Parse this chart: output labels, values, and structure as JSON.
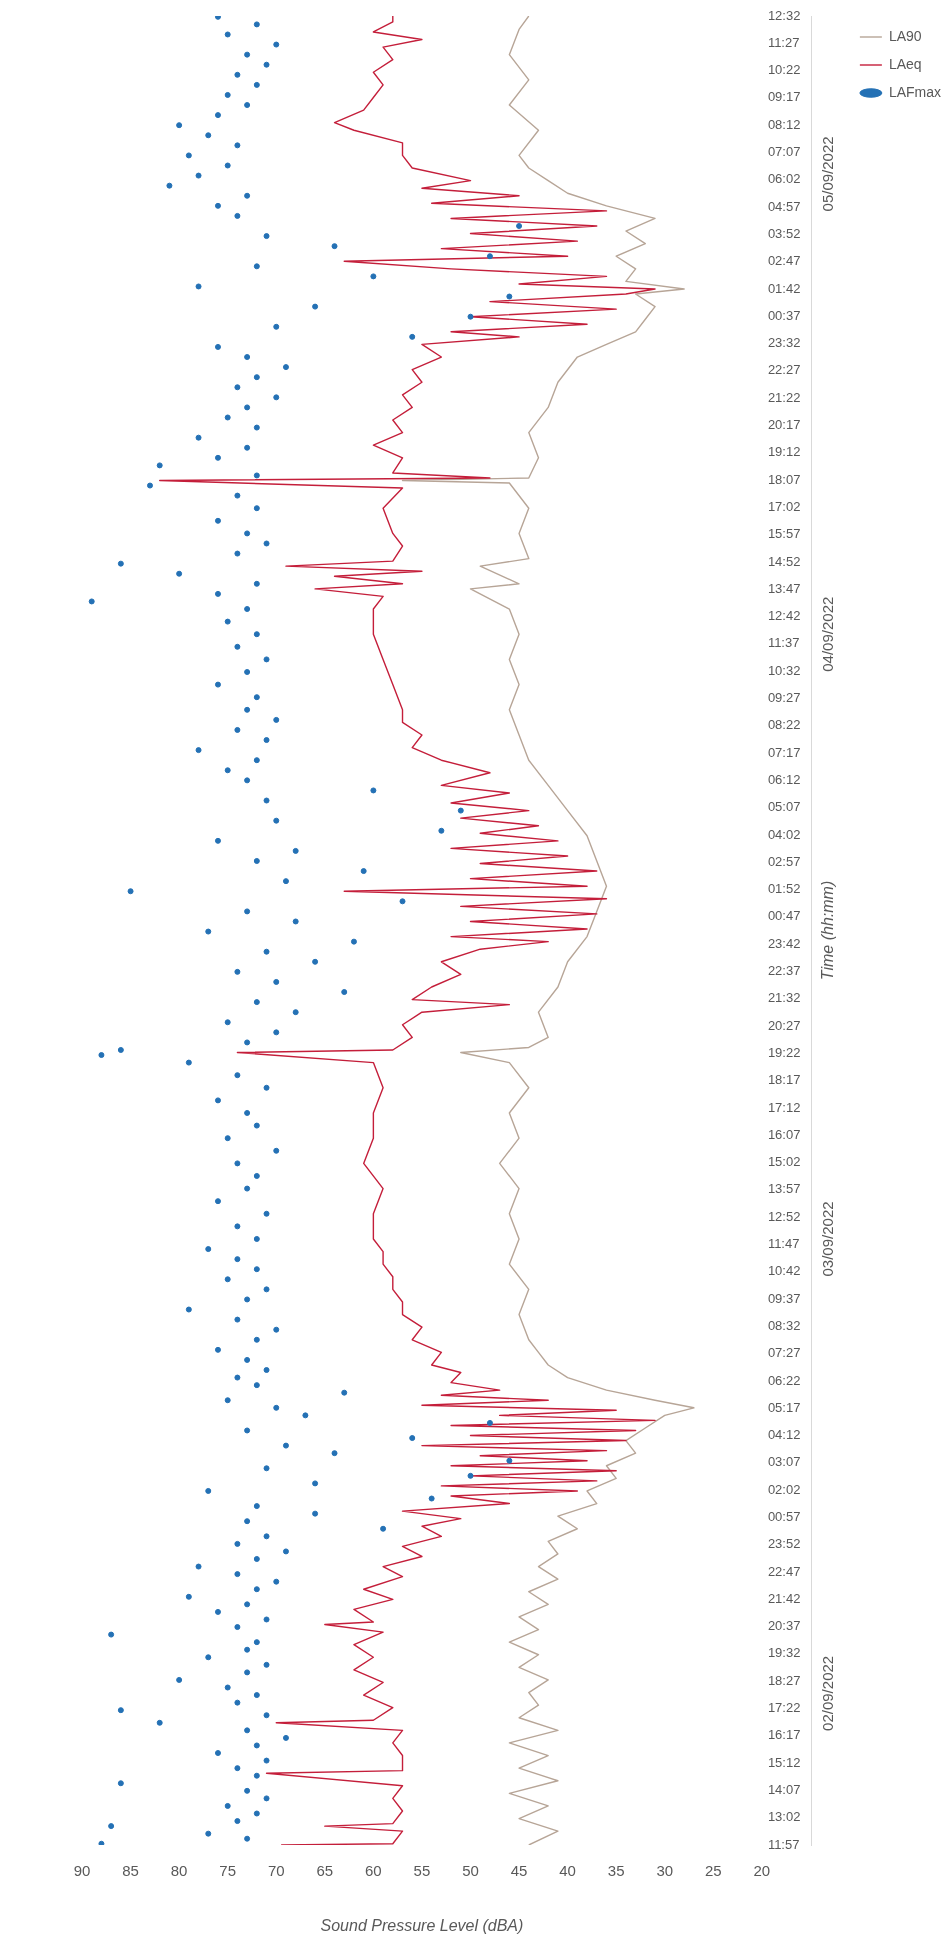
{
  "chart_data": {
    "type": "line",
    "orientation": "horizontal",
    "xlabel": "Sound Pressure Level (dBA)",
    "y2label": "Time (hh:mm)",
    "xlim": [
      90,
      20
    ],
    "xticks": [
      90,
      85,
      80,
      75,
      70,
      65,
      60,
      55,
      50,
      45,
      40,
      35,
      30,
      25,
      20
    ],
    "ylim": [
      "2022-09-02T11:57",
      "2022-09-05T12:32"
    ],
    "yticks": [
      {
        "value": "2022-09-02T11:57",
        "label": "11:57"
      },
      {
        "value": "2022-09-02T13:02",
        "label": "13:02"
      },
      {
        "value": "2022-09-02T14:07",
        "label": "14:07"
      },
      {
        "value": "2022-09-02T15:12",
        "label": "15:12"
      },
      {
        "value": "2022-09-02T16:17",
        "label": "16:17"
      },
      {
        "value": "2022-09-02T17:22",
        "label": "17:22"
      },
      {
        "value": "2022-09-02T18:27",
        "label": "18:27"
      },
      {
        "value": "2022-09-02T19:32",
        "label": "19:32"
      },
      {
        "value": "2022-09-02T20:37",
        "label": "20:37"
      },
      {
        "value": "2022-09-02T21:42",
        "label": "21:42"
      },
      {
        "value": "2022-09-02T22:47",
        "label": "22:47"
      },
      {
        "value": "2022-09-02T23:52",
        "label": "23:52"
      },
      {
        "value": "2022-09-03T00:57",
        "label": "00:57"
      },
      {
        "value": "2022-09-03T02:02",
        "label": "02:02"
      },
      {
        "value": "2022-09-03T03:07",
        "label": "03:07"
      },
      {
        "value": "2022-09-03T04:12",
        "label": "04:12"
      },
      {
        "value": "2022-09-03T05:17",
        "label": "05:17"
      },
      {
        "value": "2022-09-03T06:22",
        "label": "06:22"
      },
      {
        "value": "2022-09-03T07:27",
        "label": "07:27"
      },
      {
        "value": "2022-09-03T08:32",
        "label": "08:32"
      },
      {
        "value": "2022-09-03T09:37",
        "label": "09:37"
      },
      {
        "value": "2022-09-03T10:42",
        "label": "10:42"
      },
      {
        "value": "2022-09-03T11:47",
        "label": "11:47"
      },
      {
        "value": "2022-09-03T12:52",
        "label": "12:52"
      },
      {
        "value": "2022-09-03T13:57",
        "label": "13:57"
      },
      {
        "value": "2022-09-03T15:02",
        "label": "15:02"
      },
      {
        "value": "2022-09-03T16:07",
        "label": "16:07"
      },
      {
        "value": "2022-09-03T17:12",
        "label": "17:12"
      },
      {
        "value": "2022-09-03T18:17",
        "label": "18:17"
      },
      {
        "value": "2022-09-03T19:22",
        "label": "19:22"
      },
      {
        "value": "2022-09-03T20:27",
        "label": "20:27"
      },
      {
        "value": "2022-09-03T21:32",
        "label": "21:32"
      },
      {
        "value": "2022-09-03T22:37",
        "label": "22:37"
      },
      {
        "value": "2022-09-03T23:42",
        "label": "23:42"
      },
      {
        "value": "2022-09-04T00:47",
        "label": "00:47"
      },
      {
        "value": "2022-09-04T01:52",
        "label": "01:52"
      },
      {
        "value": "2022-09-04T02:57",
        "label": "02:57"
      },
      {
        "value": "2022-09-04T04:02",
        "label": "04:02"
      },
      {
        "value": "2022-09-04T05:07",
        "label": "05:07"
      },
      {
        "value": "2022-09-04T06:12",
        "label": "06:12"
      },
      {
        "value": "2022-09-04T07:17",
        "label": "07:17"
      },
      {
        "value": "2022-09-04T08:22",
        "label": "08:22"
      },
      {
        "value": "2022-09-04T09:27",
        "label": "09:27"
      },
      {
        "value": "2022-09-04T10:32",
        "label": "10:32"
      },
      {
        "value": "2022-09-04T11:37",
        "label": "11:37"
      },
      {
        "value": "2022-09-04T12:42",
        "label": "12:42"
      },
      {
        "value": "2022-09-04T13:47",
        "label": "13:47"
      },
      {
        "value": "2022-09-04T14:52",
        "label": "14:52"
      },
      {
        "value": "2022-09-04T15:57",
        "label": "15:57"
      },
      {
        "value": "2022-09-04T17:02",
        "label": "17:02"
      },
      {
        "value": "2022-09-04T18:07",
        "label": "18:07"
      },
      {
        "value": "2022-09-04T19:12",
        "label": "19:12"
      },
      {
        "value": "2022-09-04T20:17",
        "label": "20:17"
      },
      {
        "value": "2022-09-04T21:22",
        "label": "21:22"
      },
      {
        "value": "2022-09-04T22:27",
        "label": "22:27"
      },
      {
        "value": "2022-09-04T23:32",
        "label": "23:32"
      },
      {
        "value": "2022-09-05T00:37",
        "label": "00:37"
      },
      {
        "value": "2022-09-05T01:42",
        "label": "01:42"
      },
      {
        "value": "2022-09-05T02:47",
        "label": "02:47"
      },
      {
        "value": "2022-09-05T03:52",
        "label": "03:52"
      },
      {
        "value": "2022-09-05T04:57",
        "label": "04:57"
      },
      {
        "value": "2022-09-05T06:02",
        "label": "06:02"
      },
      {
        "value": "2022-09-05T07:07",
        "label": "07:07"
      },
      {
        "value": "2022-09-05T08:12",
        "label": "08:12"
      },
      {
        "value": "2022-09-05T09:17",
        "label": "09:17"
      },
      {
        "value": "2022-09-05T10:22",
        "label": "10:22"
      },
      {
        "value": "2022-09-05T11:27",
        "label": "11:27"
      },
      {
        "value": "2022-09-05T12:32",
        "label": "12:32"
      }
    ],
    "y2lim": [
      "2022-09-02T11:57",
      "2022-09-05T12:32"
    ],
    "y2ticks": [
      {
        "value": "2022-09-02T17:58",
        "label": "02/09/2022"
      },
      {
        "value": "2022-09-03T12:00",
        "label": "03/09/2022"
      },
      {
        "value": "2022-09-04T12:00",
        "label": "04/09/2022"
      },
      {
        "value": "2022-09-05T06:16",
        "label": "05/09/2022"
      }
    ],
    "grid": false,
    "legend": "right",
    "series": [
      {
        "name": "LAFmax",
        "type": "scatter",
        "marker": "circle",
        "color": "#2471b5",
        "x": [
          "2022-09-02T12:00",
          "2022-09-02T12:12",
          "2022-09-02T12:24",
          "2022-09-02T12:42",
          "2022-09-02T12:54",
          "2022-09-02T13:12",
          "2022-09-02T13:30",
          "2022-09-02T13:48",
          "2022-09-02T14:06",
          "2022-09-02T14:24",
          "2022-09-02T14:42",
          "2022-09-02T15:00",
          "2022-09-02T15:18",
          "2022-09-02T15:36",
          "2022-09-02T15:54",
          "2022-09-02T16:12",
          "2022-09-02T16:30",
          "2022-09-02T16:48",
          "2022-09-02T17:06",
          "2022-09-02T17:18",
          "2022-09-02T17:36",
          "2022-09-02T17:54",
          "2022-09-02T18:12",
          "2022-09-02T18:30",
          "2022-09-02T18:48",
          "2022-09-02T19:06",
          "2022-09-02T19:24",
          "2022-09-02T19:42",
          "2022-09-02T20:00",
          "2022-09-02T20:18",
          "2022-09-02T20:36",
          "2022-09-02T20:54",
          "2022-09-02T21:12",
          "2022-09-02T21:30",
          "2022-09-02T21:48",
          "2022-09-02T22:06",
          "2022-09-02T22:24",
          "2022-09-02T22:42",
          "2022-09-02T23:00",
          "2022-09-02T23:18",
          "2022-09-02T23:36",
          "2022-09-02T23:54",
          "2022-09-03T00:12",
          "2022-09-03T00:30",
          "2022-09-03T00:48",
          "2022-09-03T01:06",
          "2022-09-03T01:24",
          "2022-09-03T01:42",
          "2022-09-03T02:00",
          "2022-09-03T02:18",
          "2022-09-03T02:36",
          "2022-09-03T02:54",
          "2022-09-03T03:12",
          "2022-09-03T03:30",
          "2022-09-03T03:48",
          "2022-09-03T04:06",
          "2022-09-03T04:24",
          "2022-09-03T04:42",
          "2022-09-03T05:00",
          "2022-09-03T05:18",
          "2022-09-03T05:36",
          "2022-09-03T05:54",
          "2022-09-03T06:12",
          "2022-09-03T06:30",
          "2022-09-03T06:48",
          "2022-09-03T07:12",
          "2022-09-03T07:36",
          "2022-09-03T08:00",
          "2022-09-03T08:24",
          "2022-09-03T08:48",
          "2022-09-03T09:12",
          "2022-09-03T09:36",
          "2022-09-03T10:00",
          "2022-09-03T10:24",
          "2022-09-03T10:48",
          "2022-09-03T11:12",
          "2022-09-03T11:36",
          "2022-09-03T12:00",
          "2022-09-03T12:30",
          "2022-09-03T13:00",
          "2022-09-03T13:30",
          "2022-09-03T14:00",
          "2022-09-03T14:30",
          "2022-09-03T15:00",
          "2022-09-03T15:30",
          "2022-09-03T16:00",
          "2022-09-03T16:30",
          "2022-09-03T17:00",
          "2022-09-03T17:30",
          "2022-09-03T18:00",
          "2022-09-03T18:30",
          "2022-09-03T19:00",
          "2022-09-03T19:18",
          "2022-09-03T19:30",
          "2022-09-03T19:48",
          "2022-09-03T20:12",
          "2022-09-03T20:36",
          "2022-09-03T21:00",
          "2022-09-03T21:24",
          "2022-09-03T21:48",
          "2022-09-03T22:12",
          "2022-09-03T22:36",
          "2022-09-03T23:00",
          "2022-09-03T23:24",
          "2022-09-03T23:48",
          "2022-09-04T00:12",
          "2022-09-04T00:36",
          "2022-09-04T01:00",
          "2022-09-04T01:24",
          "2022-09-04T01:48",
          "2022-09-04T02:12",
          "2022-09-04T02:36",
          "2022-09-04T03:00",
          "2022-09-04T03:24",
          "2022-09-04T03:48",
          "2022-09-04T04:12",
          "2022-09-04T04:36",
          "2022-09-04T05:00",
          "2022-09-04T05:24",
          "2022-09-04T05:48",
          "2022-09-04T06:12",
          "2022-09-04T06:36",
          "2022-09-04T07:00",
          "2022-09-04T07:24",
          "2022-09-04T07:48",
          "2022-09-04T08:12",
          "2022-09-04T08:36",
          "2022-09-04T09:00",
          "2022-09-04T09:30",
          "2022-09-04T10:00",
          "2022-09-04T10:30",
          "2022-09-04T11:00",
          "2022-09-04T11:30",
          "2022-09-04T12:00",
          "2022-09-04T12:30",
          "2022-09-04T13:00",
          "2022-09-04T13:18",
          "2022-09-04T13:36",
          "2022-09-04T14:00",
          "2022-09-04T14:24",
          "2022-09-04T14:48",
          "2022-09-04T15:12",
          "2022-09-04T15:36",
          "2022-09-04T16:00",
          "2022-09-04T16:30",
          "2022-09-04T17:00",
          "2022-09-04T17:30",
          "2022-09-04T17:54",
          "2022-09-04T18:18",
          "2022-09-04T18:42",
          "2022-09-04T19:00",
          "2022-09-04T19:24",
          "2022-09-04T19:48",
          "2022-09-04T20:12",
          "2022-09-04T20:36",
          "2022-09-04T21:00",
          "2022-09-04T21:24",
          "2022-09-04T21:48",
          "2022-09-04T22:12",
          "2022-09-04T22:36",
          "2022-09-04T23:00",
          "2022-09-04T23:24",
          "2022-09-04T23:48",
          "2022-09-05T00:12",
          "2022-09-05T00:36",
          "2022-09-05T01:00",
          "2022-09-05T01:24",
          "2022-09-05T01:48",
          "2022-09-05T02:12",
          "2022-09-05T02:36",
          "2022-09-05T03:00",
          "2022-09-05T03:24",
          "2022-09-05T03:48",
          "2022-09-05T04:12",
          "2022-09-05T04:36",
          "2022-09-05T05:00",
          "2022-09-05T05:24",
          "2022-09-05T05:48",
          "2022-09-05T06:12",
          "2022-09-05T06:36",
          "2022-09-05T07:00",
          "2022-09-05T07:24",
          "2022-09-05T07:48",
          "2022-09-05T08:12",
          "2022-09-05T08:36",
          "2022-09-05T09:00",
          "2022-09-05T09:24",
          "2022-09-05T09:48",
          "2022-09-05T10:12",
          "2022-09-05T10:36",
          "2022-09-05T11:00",
          "2022-09-05T11:24",
          "2022-09-05T11:48",
          "2022-09-05T12:12",
          "2022-09-05T12:30"
        ],
        "values": [
          88,
          73,
          77,
          87,
          74,
          72,
          75,
          71,
          73,
          86,
          72,
          74,
          71,
          76,
          72,
          69,
          73,
          82,
          71,
          86,
          74,
          72,
          75,
          80,
          73,
          71,
          77,
          73,
          72,
          87,
          74,
          71,
          76,
          73,
          79,
          72,
          70,
          74,
          78,
          72,
          69,
          74,
          71,
          59,
          73,
          66,
          72,
          54,
          77,
          66,
          50,
          71,
          46,
          64,
          69,
          56,
          73,
          48,
          67,
          70,
          75,
          63,
          72,
          74,
          71,
          73,
          76,
          72,
          70,
          74,
          79,
          73,
          71,
          75,
          72,
          74,
          77,
          72,
          74,
          71,
          76,
          73,
          72,
          74,
          70,
          75,
          72,
          73,
          76,
          71,
          74,
          79,
          88,
          86,
          73,
          70,
          75,
          68,
          72,
          63,
          70,
          74,
          66,
          71,
          62,
          77,
          68,
          73,
          57,
          85,
          69,
          61,
          72,
          68,
          76,
          53,
          70,
          51,
          71,
          60,
          73,
          75,
          72,
          78,
          71,
          74,
          70,
          73,
          72,
          76,
          73,
          71,
          74,
          72,
          75,
          73,
          89,
          76,
          72,
          80,
          86,
          74,
          71,
          73,
          76,
          72,
          74,
          83,
          72,
          82,
          76,
          73,
          78,
          72,
          75,
          73,
          70,
          74,
          72,
          69,
          73,
          76,
          56,
          70,
          50,
          66,
          46,
          78,
          60,
          72,
          48,
          64,
          71,
          45,
          74,
          76,
          73,
          81,
          78,
          75,
          79,
          74,
          77,
          80,
          76,
          73,
          75,
          72,
          74,
          71,
          73,
          70,
          75,
          72,
          76
        ]
      },
      {
        "name": "LAeq",
        "type": "line",
        "marker": "none",
        "line_style": "solid",
        "color": "#c41e3a",
        "x": [
          "2022-09-02T11:57",
          "2022-09-02T12:00",
          "2022-09-02T12:30",
          "2022-09-02T12:42",
          "2022-09-02T12:48",
          "2022-09-02T13:18",
          "2022-09-02T13:48",
          "2022-09-02T14:18",
          "2022-09-02T14:48",
          "2022-09-02T14:54",
          "2022-09-02T15:30",
          "2022-09-02T16:00",
          "2022-09-02T16:30",
          "2022-09-02T16:48",
          "2022-09-02T16:54",
          "2022-09-02T17:24",
          "2022-09-02T17:54",
          "2022-09-02T18:24",
          "2022-09-02T18:54",
          "2022-09-02T19:24",
          "2022-09-02T19:54",
          "2022-09-02T20:24",
          "2022-09-02T20:42",
          "2022-09-02T20:48",
          "2022-09-02T21:18",
          "2022-09-02T21:42",
          "2022-09-02T22:06",
          "2022-09-02T22:36",
          "2022-09-02T23:00",
          "2022-09-02T23:24",
          "2022-09-02T23:48",
          "2022-09-03T00:12",
          "2022-09-03T00:36",
          "2022-09-03T00:54",
          "2022-09-03T01:12",
          "2022-09-03T01:30",
          "2022-09-03T01:48",
          "2022-09-03T02:00",
          "2022-09-03T02:12",
          "2022-09-03T02:24",
          "2022-09-03T02:36",
          "2022-09-03T02:48",
          "2022-09-03T03:00",
          "2022-09-03T03:12",
          "2022-09-03T03:24",
          "2022-09-03T03:36",
          "2022-09-03T03:48",
          "2022-09-03T04:00",
          "2022-09-03T04:12",
          "2022-09-03T04:24",
          "2022-09-03T04:36",
          "2022-09-03T04:48",
          "2022-09-03T05:00",
          "2022-09-03T05:12",
          "2022-09-03T05:24",
          "2022-09-03T05:36",
          "2022-09-03T05:48",
          "2022-09-03T06:00",
          "2022-09-03T06:18",
          "2022-09-03T06:42",
          "2022-09-03T07:00",
          "2022-09-03T07:30",
          "2022-09-03T08:00",
          "2022-09-03T08:30",
          "2022-09-03T09:00",
          "2022-09-03T09:30",
          "2022-09-03T10:00",
          "2022-09-03T10:30",
          "2022-09-03T11:00",
          "2022-09-03T11:30",
          "2022-09-03T12:00",
          "2022-09-03T13:00",
          "2022-09-03T14:00",
          "2022-09-03T15:00",
          "2022-09-03T16:00",
          "2022-09-03T17:00",
          "2022-09-03T18:00",
          "2022-09-03T19:00",
          "2022-09-03T19:24",
          "2022-09-03T19:30",
          "2022-09-03T20:00",
          "2022-09-03T20:30",
          "2022-09-03T21:00",
          "2022-09-03T21:18",
          "2022-09-03T21:30",
          "2022-09-03T22:00",
          "2022-09-03T22:30",
          "2022-09-03T23:00",
          "2022-09-03T23:30",
          "2022-09-03T23:48",
          "2022-09-04T00:00",
          "2022-09-04T00:18",
          "2022-09-04T00:36",
          "2022-09-04T00:54",
          "2022-09-04T01:12",
          "2022-09-04T01:30",
          "2022-09-04T01:48",
          "2022-09-04T02:00",
          "2022-09-04T02:18",
          "2022-09-04T02:36",
          "2022-09-04T02:54",
          "2022-09-04T03:12",
          "2022-09-04T03:30",
          "2022-09-04T03:48",
          "2022-09-04T04:06",
          "2022-09-04T04:24",
          "2022-09-04T04:42",
          "2022-09-04T05:00",
          "2022-09-04T05:18",
          "2022-09-04T05:42",
          "2022-09-04T06:00",
          "2022-09-04T06:30",
          "2022-09-04T07:00",
          "2022-09-04T07:30",
          "2022-09-04T08:00",
          "2022-09-04T08:30",
          "2022-09-04T09:00",
          "2022-09-04T10:00",
          "2022-09-04T11:00",
          "2022-09-04T12:00",
          "2022-09-04T13:00",
          "2022-09-04T13:30",
          "2022-09-04T13:48",
          "2022-09-04T14:00",
          "2022-09-04T14:18",
          "2022-09-04T14:30",
          "2022-09-04T14:42",
          "2022-09-04T14:54",
          "2022-09-04T15:30",
          "2022-09-04T16:00",
          "2022-09-04T17:00",
          "2022-09-04T17:48",
          "2022-09-04T18:06",
          "2022-09-04T18:12",
          "2022-09-04T18:24",
          "2022-09-04T19:00",
          "2022-09-04T19:30",
          "2022-09-04T20:00",
          "2022-09-04T20:30",
          "2022-09-04T21:00",
          "2022-09-04T21:30",
          "2022-09-04T22:00",
          "2022-09-04T22:30",
          "2022-09-04T23:00",
          "2022-09-04T23:30",
          "2022-09-04T23:48",
          "2022-09-05T00:00",
          "2022-09-05T00:18",
          "2022-09-05T00:36",
          "2022-09-05T00:54",
          "2022-09-05T01:12",
          "2022-09-05T01:30",
          "2022-09-05T01:42",
          "2022-09-05T01:54",
          "2022-09-05T02:12",
          "2022-09-05T02:30",
          "2022-09-05T02:48",
          "2022-09-05T03:00",
          "2022-09-05T03:18",
          "2022-09-05T03:36",
          "2022-09-05T03:54",
          "2022-09-05T04:12",
          "2022-09-05T04:30",
          "2022-09-05T04:48",
          "2022-09-05T05:06",
          "2022-09-05T05:24",
          "2022-09-05T05:42",
          "2022-09-05T06:00",
          "2022-09-05T06:30",
          "2022-09-05T07:00",
          "2022-09-05T07:30",
          "2022-09-05T08:00",
          "2022-09-05T08:18",
          "2022-09-05T08:48",
          "2022-09-05T09:18",
          "2022-09-05T09:48",
          "2022-09-05T10:18",
          "2022-09-05T10:48",
          "2022-09-05T11:18",
          "2022-09-05T11:36",
          "2022-09-05T11:54",
          "2022-09-05T12:18",
          "2022-09-05T12:32"
        ],
        "values": [
          69.5,
          58,
          57,
          65,
          58,
          57,
          58,
          57,
          71,
          57,
          57,
          58,
          57,
          70,
          60,
          58,
          61,
          59,
          62,
          60,
          62,
          59,
          65,
          60,
          62,
          58,
          61,
          57,
          59,
          55,
          57,
          53,
          55,
          51,
          57,
          46,
          52,
          39,
          53,
          37,
          50,
          35,
          52,
          38,
          49,
          36,
          55,
          34,
          50,
          33,
          52,
          31,
          47,
          35,
          55,
          42,
          53,
          47,
          52,
          51,
          54,
          53,
          56,
          55,
          57,
          57,
          58,
          58,
          59,
          59,
          60,
          60,
          59,
          61,
          60,
          60,
          59,
          60,
          74,
          58,
          56,
          57,
          55,
          46,
          56,
          54,
          51,
          53,
          49,
          42,
          52,
          38,
          50,
          37,
          51,
          36,
          63,
          38,
          50,
          37,
          49,
          40,
          52,
          41,
          49,
          43,
          51,
          44,
          52,
          46,
          53,
          48,
          53,
          56,
          55,
          57,
          57,
          58,
          59,
          60,
          60,
          59,
          66,
          57,
          64,
          55,
          69,
          58,
          57,
          58,
          59,
          57,
          82,
          48,
          58,
          57,
          60,
          57,
          58,
          56,
          57,
          55,
          56,
          53,
          55,
          45,
          52,
          38,
          50,
          35,
          48,
          34,
          31,
          45,
          36,
          52,
          63,
          40,
          53,
          39,
          50,
          37,
          52,
          36,
          54,
          45,
          55,
          50,
          56,
          57,
          57,
          62,
          64,
          61,
          60,
          59,
          60,
          58,
          59,
          55,
          60,
          58,
          58
        ]
      },
      {
        "name": "LA90",
        "type": "line",
        "marker": "none",
        "line_style": "solid",
        "color": "#b7a597",
        "x": [
          "2022-09-02T11:57",
          "2022-09-02T12:30",
          "2022-09-02T13:00",
          "2022-09-02T13:30",
          "2022-09-02T14:00",
          "2022-09-02T14:30",
          "2022-09-02T15:00",
          "2022-09-02T15:30",
          "2022-09-02T16:00",
          "2022-09-02T16:30",
          "2022-09-02T17:00",
          "2022-09-02T17:30",
          "2022-09-02T18:00",
          "2022-09-02T18:30",
          "2022-09-02T19:00",
          "2022-09-02T19:30",
          "2022-09-02T20:00",
          "2022-09-02T20:30",
          "2022-09-02T21:00",
          "2022-09-02T21:30",
          "2022-09-02T22:00",
          "2022-09-02T22:30",
          "2022-09-02T23:00",
          "2022-09-02T23:30",
          "2022-09-03T00:00",
          "2022-09-03T00:30",
          "2022-09-03T01:00",
          "2022-09-03T01:30",
          "2022-09-03T02:00",
          "2022-09-03T02:30",
          "2022-09-03T03:00",
          "2022-09-03T03:30",
          "2022-09-03T04:00",
          "2022-09-03T04:30",
          "2022-09-03T05:00",
          "2022-09-03T05:18",
          "2022-09-03T05:36",
          "2022-09-03T06:00",
          "2022-09-03T06:30",
          "2022-09-03T07:00",
          "2022-09-03T07:30",
          "2022-09-03T08:00",
          "2022-09-03T09:00",
          "2022-09-03T10:00",
          "2022-09-03T11:00",
          "2022-09-03T12:00",
          "2022-09-03T13:00",
          "2022-09-03T14:00",
          "2022-09-03T15:00",
          "2022-09-03T16:00",
          "2022-09-03T17:00",
          "2022-09-03T18:00",
          "2022-09-03T19:00",
          "2022-09-03T19:24",
          "2022-09-03T19:36",
          "2022-09-03T20:00",
          "2022-09-03T21:00",
          "2022-09-03T22:00",
          "2022-09-03T23:00",
          "2022-09-04T00:00",
          "2022-09-04T01:00",
          "2022-09-04T02:00",
          "2022-09-04T03:00",
          "2022-09-04T04:00",
          "2022-09-04T05:00",
          "2022-09-04T06:00",
          "2022-09-04T07:00",
          "2022-09-04T08:00",
          "2022-09-04T09:00",
          "2022-09-04T10:00",
          "2022-09-04T11:00",
          "2022-09-04T12:00",
          "2022-09-04T13:00",
          "2022-09-04T13:48",
          "2022-09-04T14:00",
          "2022-09-04T14:42",
          "2022-09-04T15:00",
          "2022-09-04T16:00",
          "2022-09-04T17:00",
          "2022-09-04T18:00",
          "2022-09-04T18:06",
          "2022-09-04T18:12",
          "2022-09-04T19:00",
          "2022-09-04T20:00",
          "2022-09-04T21:00",
          "2022-09-04T22:00",
          "2022-09-04T23:00",
          "2022-09-04T23:30",
          "2022-09-05T00:00",
          "2022-09-05T00:30",
          "2022-09-05T01:00",
          "2022-09-05T01:30",
          "2022-09-05T01:42",
          "2022-09-05T02:00",
          "2022-09-05T02:30",
          "2022-09-05T03:00",
          "2022-09-05T03:30",
          "2022-09-05T04:00",
          "2022-09-05T04:30",
          "2022-09-05T05:00",
          "2022-09-05T05:30",
          "2022-09-05T06:00",
          "2022-09-05T06:30",
          "2022-09-05T07:00",
          "2022-09-05T08:00",
          "2022-09-05T09:00",
          "2022-09-05T10:00",
          "2022-09-05T11:00",
          "2022-09-05T12:00",
          "2022-09-05T12:32"
        ],
        "values": [
          44,
          41,
          45,
          42,
          46,
          41,
          45,
          42,
          46,
          41,
          45,
          43,
          44,
          42,
          45,
          43,
          46,
          43,
          45,
          42,
          44,
          41,
          43,
          41,
          42,
          39,
          41,
          37,
          38,
          35,
          36,
          33,
          34,
          32,
          30,
          27,
          31,
          36,
          40,
          42,
          43,
          44,
          45,
          44,
          46,
          45,
          46,
          45,
          47,
          45,
          46,
          44,
          46,
          51,
          44,
          42,
          43,
          41,
          40,
          38,
          37,
          36,
          37,
          38,
          40,
          42,
          44,
          45,
          46,
          45,
          46,
          45,
          46,
          50,
          45,
          49,
          44,
          45,
          44,
          46,
          57,
          44,
          43,
          44,
          42,
          41,
          39,
          36,
          33,
          32,
          31,
          33,
          28,
          34,
          33,
          35,
          32,
          34,
          31,
          36,
          40,
          42,
          44,
          45,
          43,
          46,
          44,
          46,
          45,
          44
        ]
      }
    ]
  }
}
